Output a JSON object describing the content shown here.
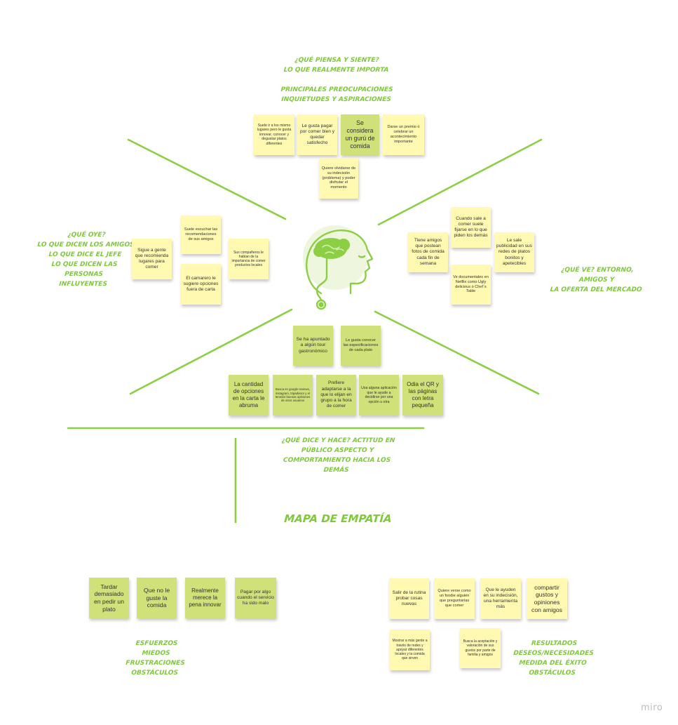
{
  "board": {
    "title": "MAPA DE EMPATÍA",
    "watermark": "miro",
    "accent_color": "#8ccf44"
  },
  "sections": {
    "thinks": "¿QUÉ PIENSA Y SIENTE?\nLO QUE REALMENTE IMPORTA",
    "thinks_sub": "PRINCIPALES PREOCUPACIONES\nINQUIETUDES Y ASPIRACIONES",
    "hears": "¿QUÉ OYE?\nLO QUE DICEN LOS AMIGOS\nLO QUE DICE EL JEFE\nLO QUE DICEN LAS PERSONAS\nINFLUYENTES",
    "sees": "¿QUÉ VE? ENTORNO, AMIGOS Y\nLA OFERTA DEL MERCADO",
    "says": "¿QUÉ DICE Y HACE? ACTITUD EN\nPÚBLICO ASPECTO Y\nCOMPORTAMIENTO HACIA LOS\nDEMÁS",
    "pains": "ESFUERZOS\nMIEDOS\nFRUSTRACIONES\nOBSTÁCULOS",
    "gains": "RESULTADOS\nDESEOS/NECESIDADES\nMEDIDA DEL ÉXITO\nOBSTÁCULOS"
  },
  "notes": {
    "thinks": [
      "Suele ir a los mismo lugares pero le gusta innovar, conocer y degustar platos diferentes",
      "Le gusta pagar por comer bien y quedar satisfecho",
      "Se considera un gurú de comida",
      "Darse un premio o celebrar un acontecimiento importante",
      "Quiere olvidarse de su indecisión (problema) y poder disfrutar el momento"
    ],
    "hears": [
      "Suele escuchar las recomendaciones de sus amigos",
      "Sigue a gente que recomienda lugares para comer",
      "Sus compañeros le hablan de la importancia de comer productos locales",
      "El camarero le sugiere opciones fuera de carta"
    ],
    "sees": [
      "Cuando sale a comer suele fijarse en lo que piden los demás",
      "Tiene amigos que postean fotos de comida cada fin de semana",
      "Le sale publicidad en sus redes de platos bonitos y apetecibles",
      "Ve documentales en Netflix como Ugly delicious o Chef´s Table"
    ],
    "says": [
      "Se ha apuntado  a algún tour gastronómico",
      "Le gusta conocer las especificaciones de cada plato",
      "La cantidad de opciones en la carta le abruma",
      "Busca en google reviews, instagram, tripadvisor y el tenedor buenas opiniones de otros usuarios",
      "Prefiere adaptarse a la que lo elijan en grupo a la hora de comer",
      "Usa alguna aplicación que le ayude a decidirse por una opción u otra",
      "Odia el QR y las páginas con letra pequeña"
    ],
    "pains": [
      "Tardar demasiado en pedir un plato",
      "Que no le guste la comida",
      "Realmente merece la pena innovar",
      "Pagar por algo cuando el servicio ha sido malo"
    ],
    "gains": [
      "Salir de la rutina probar cosas nuevas",
      "Quiere verse como un foodie alguién que preguntarías que comer",
      "Que le ayuden en su indecisión, una herramienta más",
      "compartir gustos y opiniones con amigos",
      "Mostrar a más gente a través de redes y apoyar diferentes locales y la comida que sirven",
      "Busca la aceptación y valoración de sus gustos por parte de familia y amigos"
    ]
  }
}
